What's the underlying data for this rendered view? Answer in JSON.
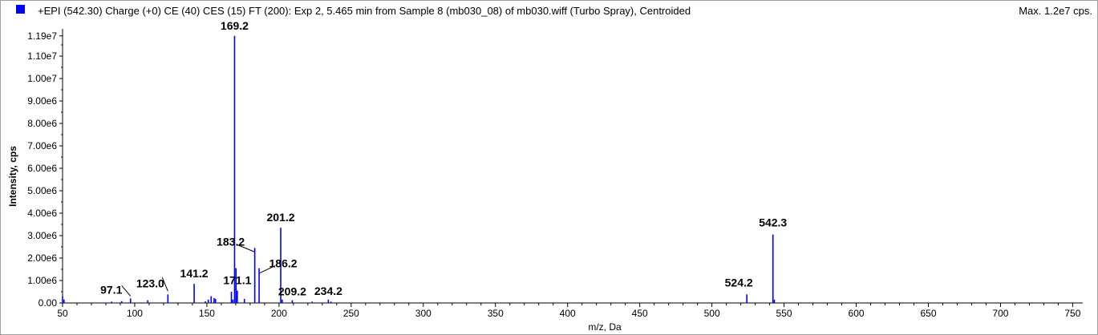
{
  "header": {
    "title": "+EPI (542.30) Charge (+0) CE (40) CES (15) FT (200): Exp 2, 5.465 min from Sample 8 (mb030_08) of mb030.wiff (Turbo Spray), Centroided",
    "max_label": "Max. 1.2e7 cps."
  },
  "colors": {
    "series": "#0000ff",
    "axis": "#000000",
    "frame": "#a0a0a0"
  },
  "chart_data": {
    "type": "bar",
    "xlabel": "m/z, Da",
    "ylabel": "Intensity, cps",
    "xlim": [
      50,
      757
    ],
    "ylim": [
      0,
      12000000
    ],
    "x_ticks": [
      50,
      100,
      150,
      200,
      250,
      300,
      350,
      400,
      450,
      500,
      550,
      600,
      650,
      700,
      750
    ],
    "x_tick_labels": [
      "50",
      "100",
      "150",
      "200",
      "250",
      "300",
      "350",
      "400",
      "450",
      "500",
      "550",
      "600",
      "650",
      "700",
      "750"
    ],
    "y_ticks": [
      0,
      1000000,
      2000000,
      3000000,
      4000000,
      5000000,
      6000000,
      7000000,
      8000000,
      9000000,
      10000000,
      11000000,
      11900000
    ],
    "y_tick_labels": [
      "0.00",
      "1.00e6",
      "2.00e6",
      "3.00e6",
      "4.00e6",
      "5.00e6",
      "6.00e6",
      "7.00e6",
      "8.00e6",
      "9.00e6",
      "1.00e7",
      "1.10e7",
      "1.19e7"
    ],
    "grid": false,
    "legend": "none",
    "peaks": [
      {
        "mz": 50.0,
        "intensity": 300000
      },
      {
        "mz": 51.0,
        "intensity": 150000
      },
      {
        "mz": 84.0,
        "intensity": 60000
      },
      {
        "mz": 91.0,
        "intensity": 80000
      },
      {
        "mz": 97.1,
        "intensity": 200000
      },
      {
        "mz": 109.0,
        "intensity": 120000
      },
      {
        "mz": 123.0,
        "intensity": 380000
      },
      {
        "mz": 141.2,
        "intensity": 850000
      },
      {
        "mz": 149.0,
        "intensity": 70000
      },
      {
        "mz": 151.0,
        "intensity": 150000
      },
      {
        "mz": 153.0,
        "intensity": 300000
      },
      {
        "mz": 155.0,
        "intensity": 220000
      },
      {
        "mz": 156.0,
        "intensity": 180000
      },
      {
        "mz": 167.0,
        "intensity": 500000
      },
      {
        "mz": 168.0,
        "intensity": 150000
      },
      {
        "mz": 169.2,
        "intensity": 11900000
      },
      {
        "mz": 170.2,
        "intensity": 1550000
      },
      {
        "mz": 171.1,
        "intensity": 550000
      },
      {
        "mz": 176.0,
        "intensity": 180000
      },
      {
        "mz": 183.2,
        "intensity": 2450000
      },
      {
        "mz": 186.2,
        "intensity": 1550000
      },
      {
        "mz": 201.2,
        "intensity": 3350000
      },
      {
        "mz": 202.2,
        "intensity": 150000
      },
      {
        "mz": 209.2,
        "intensity": 120000
      },
      {
        "mz": 223.0,
        "intensity": 60000
      },
      {
        "mz": 234.2,
        "intensity": 150000
      },
      {
        "mz": 236.0,
        "intensity": 60000
      },
      {
        "mz": 524.2,
        "intensity": 380000
      },
      {
        "mz": 542.3,
        "intensity": 3050000
      },
      {
        "mz": 543.3,
        "intensity": 150000
      }
    ],
    "annotations": [
      "169.2",
      "201.2",
      "183.2",
      "186.2",
      "141.2",
      "171.1",
      "97.1",
      "123.0",
      "209.2",
      "234.2",
      "524.2",
      "542.3"
    ]
  }
}
